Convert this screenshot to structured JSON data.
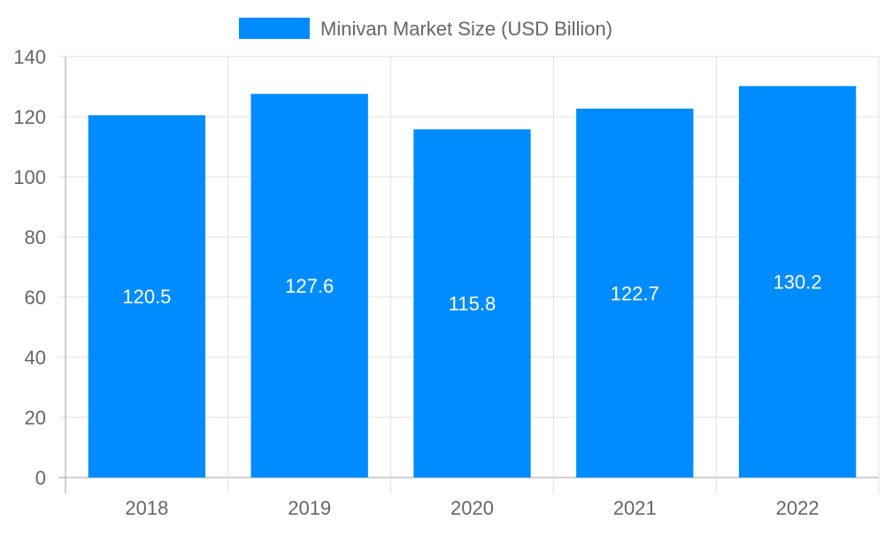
{
  "chart_data": {
    "type": "bar",
    "categories": [
      "2018",
      "2019",
      "2020",
      "2021",
      "2022"
    ],
    "series": [
      {
        "name": "Minivan Market Size (USD Billion)",
        "values": [
          120.5,
          127.6,
          115.8,
          122.7,
          130.2
        ]
      }
    ],
    "ylim": [
      0,
      140
    ],
    "yticks": [
      0,
      20,
      40,
      60,
      80,
      100,
      120,
      140
    ],
    "grid": true,
    "legend_position": "top",
    "data_labels": true,
    "colors": {
      "bar": "#008cff",
      "grid": "#e0e0e0",
      "axis": "#a0a0a0",
      "text": "#666666",
      "label": "#ffffff"
    }
  }
}
